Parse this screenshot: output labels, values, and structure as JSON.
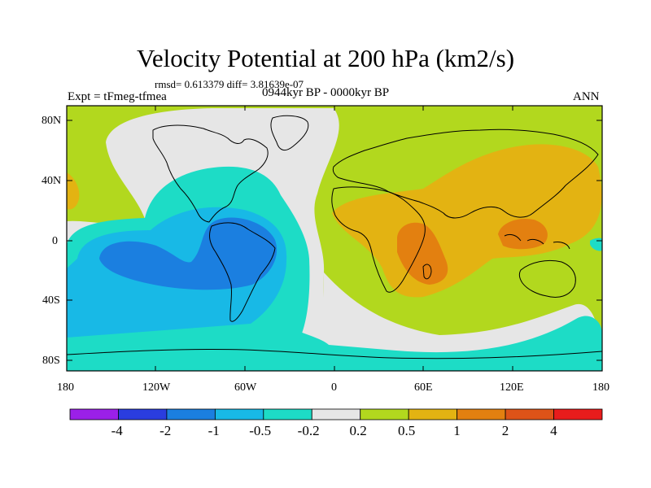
{
  "plot": {
    "title": "Velocity Potential at 200 hPa (km2/s)",
    "stats": "rmsd= 0.613379 diff= 3.81639e-07",
    "experiment": "Expt = tFmeg-tfmea",
    "period": "0944kyr BP - 0000kyr BP",
    "season": "ANN"
  },
  "axes": {
    "y_ticks": [
      "80N",
      "40N",
      "0",
      "40S",
      "80S"
    ],
    "x_ticks": [
      "180",
      "120W",
      "60W",
      "0",
      "60E",
      "120E",
      "180"
    ]
  },
  "colorbar": {
    "colors": [
      "#9b20e8",
      "#2a3ddf",
      "#1b7fe0",
      "#18b9e6",
      "#1ddcc6",
      "#e6e6e6",
      "#b2d81e",
      "#e3b312",
      "#e38010",
      "#dd5318",
      "#e81c1c"
    ],
    "labels": [
      "-4",
      "-2",
      "-1",
      "-0.5",
      "-0.2",
      "0.2",
      "0.5",
      "1",
      "2",
      "4"
    ]
  },
  "field_colors": {
    "green": "#b2d81e",
    "gray": "#e6e6e6",
    "cyan": "#1ddcc6",
    "lightblue": "#18b9e6",
    "blue": "#1b7fe0",
    "yellow": "#e3b312",
    "orange": "#e38010"
  }
}
